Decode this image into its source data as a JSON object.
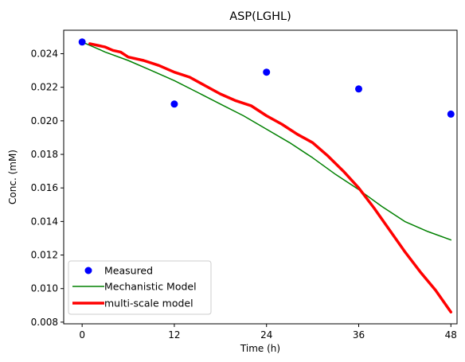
{
  "chart_data": {
    "type": "line",
    "title": "ASP(LGHL)",
    "xlabel": "Time (h)",
    "ylabel": "Conc. (mM)",
    "xlim": [
      -2.4,
      48.8
    ],
    "ylim": [
      0.0079,
      0.0254
    ],
    "xticks": [
      0,
      12,
      24,
      36,
      48
    ],
    "yticks": [
      0.008,
      0.01,
      0.012,
      0.014,
      0.016,
      0.018,
      0.02,
      0.022,
      0.024
    ],
    "ytick_labels": [
      "0.008",
      "0.010",
      "0.012",
      "0.014",
      "0.016",
      "0.018",
      "0.020",
      "0.022",
      "0.024"
    ],
    "grid": false,
    "legend_position": "lower-left",
    "series": [
      {
        "name": "Measured",
        "kind": "scatter",
        "color": "#0000ff",
        "x": [
          0,
          12,
          24,
          36,
          48
        ],
        "y": [
          0.0247,
          0.021,
          0.0229,
          0.0219,
          0.0204
        ]
      },
      {
        "name": "Mechanistic Model",
        "kind": "line",
        "color": "#008000",
        "x": [
          0,
          3,
          6,
          9,
          12,
          15,
          18,
          21,
          24,
          27,
          30,
          33,
          36,
          39,
          42,
          45,
          48
        ],
        "y": [
          0.0247,
          0.0241,
          0.0236,
          0.023,
          0.0224,
          0.0217,
          0.021,
          0.0203,
          0.0195,
          0.0187,
          0.0178,
          0.0168,
          0.0159,
          0.0149,
          0.014,
          0.0134,
          0.0129
        ]
      },
      {
        "name": "multi-scale model",
        "kind": "line",
        "color": "#ff0000",
        "x": [
          1,
          2,
          3,
          4,
          5,
          6,
          8,
          10,
          12,
          14,
          16,
          18,
          20,
          22,
          24,
          26,
          28,
          30,
          32,
          34,
          36,
          38,
          40,
          42,
          44,
          46,
          48
        ],
        "y": [
          0.0246,
          0.0245,
          0.0244,
          0.0242,
          0.0241,
          0.0238,
          0.0236,
          0.0233,
          0.0229,
          0.0226,
          0.0221,
          0.0216,
          0.0212,
          0.0209,
          0.0203,
          0.0198,
          0.0192,
          0.0187,
          0.0179,
          0.017,
          0.016,
          0.0148,
          0.0135,
          0.0122,
          0.011,
          0.0099,
          0.0086
        ]
      }
    ]
  }
}
